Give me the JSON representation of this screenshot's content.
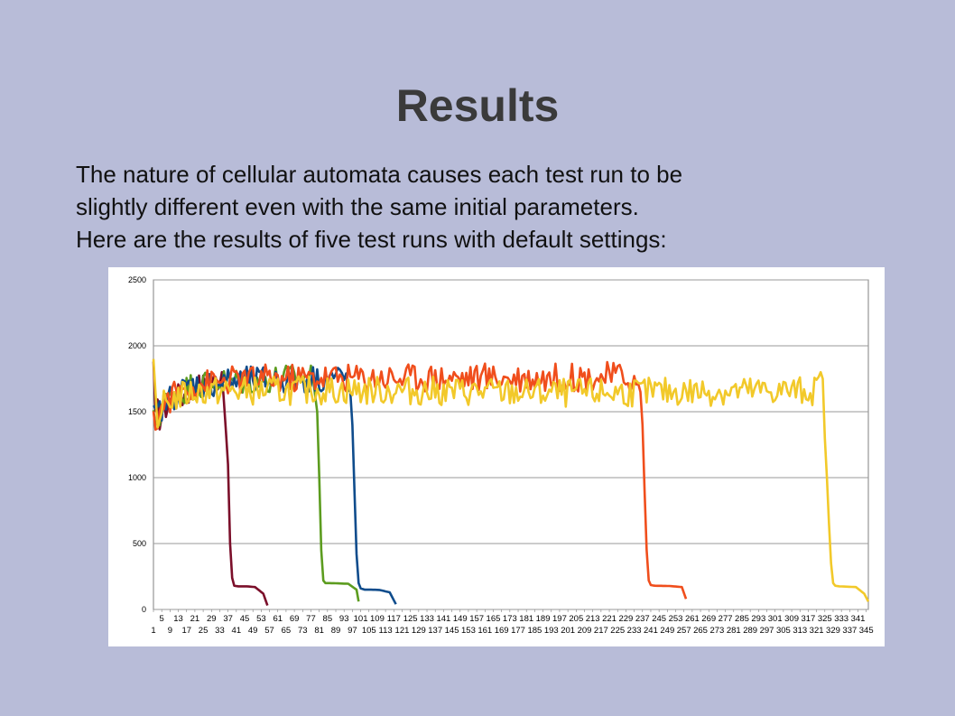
{
  "title": "Results",
  "body_lines": [
    "The nature of cellular automata causes each test run to be",
    "slightly different even with the same initial parameters.",
    "Here are the results of five test runs with default settings:"
  ],
  "chart_data": {
    "type": "line",
    "title": "",
    "xlabel": "",
    "ylabel": "",
    "ylim": [
      0,
      2500
    ],
    "yticks": [
      0,
      500,
      1000,
      1500,
      2000,
      2500
    ],
    "xlim": [
      1,
      346
    ],
    "x_tick_labels_row1": [
      "5",
      "13",
      "21",
      "29",
      "37",
      "45",
      "53",
      "61",
      "69",
      "77",
      "85",
      "93",
      "101",
      "109",
      "117",
      "125",
      "133",
      "141",
      "149",
      "157",
      "165",
      "173",
      "181",
      "189",
      "197",
      "205",
      "213",
      "221",
      "229",
      "237",
      "245",
      "253",
      "261",
      "269",
      "277",
      "285",
      "293",
      "301",
      "309",
      "317",
      "325",
      "333",
      "341"
    ],
    "x_tick_labels_row2": [
      "1",
      "9",
      "17",
      "25",
      "33",
      "41",
      "49",
      "57",
      "65",
      "73",
      "81",
      "89",
      "97",
      "105",
      "113",
      "121",
      "129",
      "137",
      "145",
      "153",
      "161",
      "169",
      "177",
      "185",
      "193",
      "201",
      "209",
      "217",
      "225",
      "233",
      "241",
      "249",
      "257",
      "265",
      "273",
      "281",
      "289",
      "297",
      "305",
      "313",
      "321",
      "329",
      "337",
      "345"
    ],
    "grid": true,
    "legend": "none",
    "series": [
      {
        "color": "#7b0f2a",
        "x": [
          1,
          2,
          3,
          4,
          6,
          10,
          15,
          20,
          25,
          30,
          34,
          36,
          37,
          38,
          39,
          40,
          42,
          46,
          50,
          54,
          56
        ],
        "y": [
          1880,
          1420,
          1500,
          1460,
          1520,
          1600,
          1620,
          1680,
          1700,
          1720,
          1800,
          1350,
          1100,
          500,
          240,
          180,
          175,
          175,
          170,
          120,
          30
        ]
      },
      {
        "color": "#5c9c1f",
        "x": [
          1,
          3,
          6,
          10,
          20,
          30,
          40,
          50,
          60,
          70,
          75,
          78,
          80,
          81,
          82,
          83,
          84,
          86,
          90,
          95,
          99,
          100
        ],
        "y": [
          1420,
          1450,
          1550,
          1620,
          1700,
          1720,
          1730,
          1740,
          1750,
          1760,
          1780,
          1750,
          1500,
          1000,
          450,
          220,
          200,
          200,
          198,
          195,
          150,
          60
        ]
      },
      {
        "color": "#0f4c8c",
        "x": [
          1,
          3,
          6,
          10,
          20,
          40,
          60,
          80,
          90,
          95,
          96,
          97,
          98,
          99,
          100,
          101,
          103,
          106,
          110,
          115,
          118
        ],
        "y": [
          1450,
          1480,
          1560,
          1620,
          1700,
          1730,
          1740,
          1750,
          1760,
          1750,
          1650,
          1400,
          900,
          420,
          200,
          160,
          150,
          150,
          148,
          130,
          40
        ]
      },
      {
        "color": "#f04e1c",
        "x": [
          1,
          3,
          6,
          10,
          20,
          40,
          80,
          120,
          160,
          200,
          230,
          236,
          237,
          238,
          239,
          240,
          241,
          243,
          250,
          256,
          258
        ],
        "y": [
          1400,
          1460,
          1560,
          1620,
          1700,
          1740,
          1760,
          1760,
          1760,
          1760,
          1770,
          1650,
          1400,
          900,
          450,
          220,
          185,
          180,
          178,
          170,
          80
        ]
      },
      {
        "color": "#f2c92a",
        "x": [
          1,
          3,
          6,
          10,
          20,
          40,
          60,
          80,
          100,
          120,
          140,
          160,
          200,
          240,
          280,
          320,
          324,
          325,
          326,
          327,
          328,
          329,
          330,
          332,
          340,
          344,
          346
        ],
        "y": [
          1900,
          1380,
          1550,
          1600,
          1650,
          1660,
          1660,
          1665,
          1660,
          1660,
          1655,
          1650,
          1640,
          1650,
          1655,
          1660,
          1750,
          1300,
          1000,
          650,
          350,
          200,
          180,
          175,
          170,
          120,
          60
        ]
      }
    ]
  }
}
